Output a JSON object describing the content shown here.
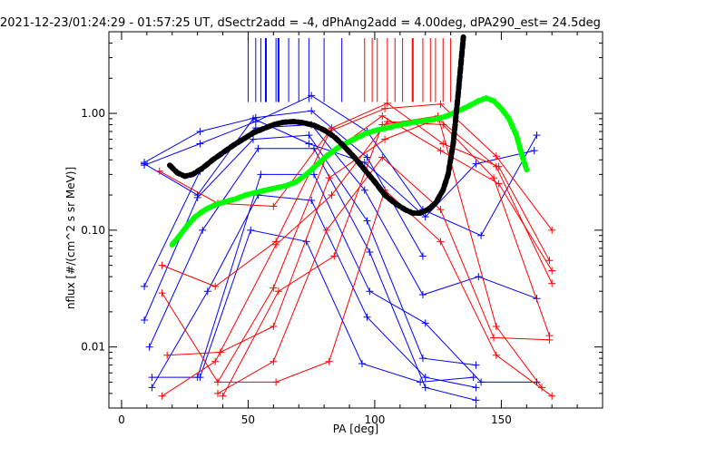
{
  "chart_data": {
    "type": "line",
    "title": "2021-12-23/01:24:29 - 01:57:25 UT, dSectr2add = -4, dPhAng2add = 4.00deg, dPA290_est= 24.5deg",
    "xlabel": "PA [deg]",
    "ylabel": "nflux [#/(cm^2 s sr MeV)]",
    "xlim": [
      -5,
      190
    ],
    "ylim": [
      0.003,
      5.0
    ],
    "yscale": "log",
    "x_ticks": [
      0,
      50,
      100,
      150
    ],
    "x_tick_labels": [
      "0",
      "50",
      "100",
      "150"
    ],
    "y_ticks": [
      0.01,
      0.1,
      1.0
    ],
    "y_tick_labels": [
      "0.01",
      "0.10",
      "1.00"
    ],
    "grid": false,
    "colors": {
      "blue": "#0000ff",
      "red": "#ff0000",
      "black": "#000000",
      "green": "#00ff00"
    },
    "blue_vlines": [
      50,
      53,
      55,
      57,
      61,
      62,
      66,
      70,
      74,
      80,
      87
    ],
    "red_vlines": [
      96,
      99,
      101,
      105,
      108,
      111,
      115,
      119,
      122,
      124,
      127,
      130
    ],
    "series": [
      {
        "color": "blue",
        "points": [
          [
            9,
            0.36
          ],
          [
            31,
            0.55
          ],
          [
            53,
            0.85
          ],
          [
            75,
            1.42
          ],
          [
            97,
            0.7
          ],
          [
            119,
            0.15
          ],
          [
            142,
            0.09
          ],
          [
            164,
            0.65
          ]
        ]
      },
      {
        "color": "blue",
        "points": [
          [
            9,
            0.38
          ],
          [
            31,
            0.7
          ],
          [
            53,
            0.92
          ],
          [
            75,
            1.05
          ],
          [
            97,
            0.42
          ],
          [
            119,
            0.06
          ]
        ]
      },
      {
        "color": "blue",
        "points": [
          [
            9,
            0.37
          ],
          [
            30,
            0.2
          ],
          [
            52,
            0.9
          ],
          [
            74,
            0.55
          ],
          [
            96,
            0.38
          ],
          [
            120,
            0.13
          ],
          [
            140,
            0.37
          ],
          [
            163,
            0.48
          ]
        ]
      },
      {
        "color": "blue",
        "points": [
          [
            9,
            0.033
          ],
          [
            31,
            0.32
          ],
          [
            53,
            0.75
          ],
          [
            75,
            0.8
          ],
          [
            96,
            0.22
          ],
          [
            119,
            0.028
          ],
          [
            141,
            0.04
          ],
          [
            164,
            0.026
          ]
        ]
      },
      {
        "color": "blue",
        "points": [
          [
            9,
            0.017
          ],
          [
            30,
            0.19
          ],
          [
            52,
            0.6
          ],
          [
            74,
            0.65
          ],
          [
            97,
            0.12
          ],
          [
            119,
            0.008
          ],
          [
            140,
            0.007
          ]
        ]
      },
      {
        "color": "blue",
        "points": [
          [
            11,
            0.01
          ],
          [
            32,
            0.1
          ],
          [
            54,
            0.5
          ],
          [
            76,
            0.5
          ],
          [
            98,
            0.065
          ],
          [
            120,
            0.0045
          ],
          [
            140,
            0.0035
          ]
        ]
      },
      {
        "color": "blue",
        "points": [
          [
            12,
            0.0055
          ],
          [
            30,
            0.0055
          ],
          [
            55,
            0.3
          ],
          [
            76,
            0.3
          ],
          [
            98,
            0.03
          ],
          [
            120,
            0.016
          ],
          [
            142,
            0.005
          ],
          [
            164,
            0.005
          ]
        ]
      },
      {
        "color": "blue",
        "points": [
          [
            12,
            0.0045
          ],
          [
            34,
            0.03
          ],
          [
            54,
            0.2
          ],
          [
            75,
            0.18
          ],
          [
            97,
            0.018
          ],
          [
            120,
            0.0055
          ],
          [
            140,
            0.0045
          ]
        ]
      },
      {
        "color": "blue",
        "points": [
          [
            31,
            0.0055
          ],
          [
            51,
            0.1
          ],
          [
            73,
            0.08
          ],
          [
            95,
            0.0072
          ],
          [
            118,
            0.005
          ],
          [
            139,
            0.0055
          ]
        ]
      },
      {
        "color": "red",
        "points": [
          [
            15,
            0.32
          ],
          [
            38,
            0.17
          ],
          [
            60,
            0.16
          ],
          [
            82,
            0.7
          ],
          [
            104,
            1.1
          ],
          [
            126,
            1.2
          ],
          [
            148,
            0.43
          ],
          [
            170,
            0.1
          ]
        ]
      },
      {
        "color": "red",
        "points": [
          [
            16,
            0.05
          ],
          [
            37,
            0.033
          ],
          [
            61,
            0.08
          ],
          [
            83,
            0.75
          ],
          [
            105,
            1.22
          ],
          [
            127,
            0.55
          ],
          [
            149,
            0.35
          ],
          [
            169,
            0.055
          ]
        ]
      },
      {
        "color": "red",
        "points": [
          [
            16,
            0.029
          ],
          [
            38,
            0.005
          ],
          [
            60,
            0.032
          ],
          [
            81,
            0.43
          ],
          [
            103,
            0.95
          ],
          [
            126,
            0.48
          ],
          [
            149,
            0.25
          ],
          [
            170,
            0.045
          ]
        ]
      },
      {
        "color": "red",
        "points": [
          [
            18,
            0.0085
          ],
          [
            39,
            0.009
          ],
          [
            60,
            0.015
          ],
          [
            82,
            0.28
          ],
          [
            104,
            0.6
          ],
          [
            125,
            0.9
          ],
          [
            148,
            0.35
          ],
          [
            170,
            0.035
          ]
        ]
      },
      {
        "color": "red",
        "points": [
          [
            16,
            0.0038
          ],
          [
            37,
            0.0075
          ],
          [
            61,
            0.075
          ],
          [
            83,
            0.2
          ],
          [
            105,
            0.85
          ],
          [
            127,
            0.8
          ],
          [
            147,
            0.28
          ],
          [
            169,
            0.0125
          ]
        ]
      },
      {
        "color": "red",
        "points": [
          [
            38,
            0.004
          ],
          [
            60,
            0.0075
          ],
          [
            81,
            0.1
          ],
          [
            103,
            0.42
          ],
          [
            126,
            0.15
          ],
          [
            147,
            0.012
          ],
          [
            169,
            0.0115
          ]
        ]
      },
      {
        "color": "red",
        "points": [
          [
            38,
            0.005
          ],
          [
            61,
            0.005
          ],
          [
            82,
            0.0075
          ],
          [
            104,
            0.22
          ],
          [
            126,
            0.08
          ],
          [
            148,
            0.0085
          ],
          [
            170,
            0.0038
          ]
        ]
      },
      {
        "color": "red",
        "points": [
          [
            40,
            0.0038
          ],
          [
            62,
            0.03
          ],
          [
            84,
            0.06
          ],
          [
            103,
            0.8
          ],
          [
            125,
            0.95
          ],
          [
            148,
            0.015
          ],
          [
            166,
            0.0045
          ]
        ]
      }
    ],
    "black_curve": [
      [
        19,
        0.36
      ],
      [
        22,
        0.31
      ],
      [
        25,
        0.29
      ],
      [
        28,
        0.3
      ],
      [
        32,
        0.34
      ],
      [
        36,
        0.4
      ],
      [
        40,
        0.46
      ],
      [
        44,
        0.53
      ],
      [
        48,
        0.6
      ],
      [
        52,
        0.68
      ],
      [
        56,
        0.74
      ],
      [
        60,
        0.8
      ],
      [
        64,
        0.84
      ],
      [
        68,
        0.85
      ],
      [
        72,
        0.83
      ],
      [
        76,
        0.79
      ],
      [
        80,
        0.72
      ],
      [
        84,
        0.63
      ],
      [
        88,
        0.52
      ],
      [
        92,
        0.42
      ],
      [
        96,
        0.33
      ],
      [
        100,
        0.26
      ],
      [
        104,
        0.2
      ],
      [
        108,
        0.17
      ],
      [
        112,
        0.15
      ],
      [
        115,
        0.14
      ],
      [
        118,
        0.14
      ],
      [
        121,
        0.15
      ],
      [
        124,
        0.17
      ],
      [
        127,
        0.22
      ],
      [
        129,
        0.3
      ],
      [
        131,
        0.55
      ],
      [
        132,
        0.9
      ],
      [
        133,
        1.5
      ],
      [
        134,
        2.6
      ],
      [
        135,
        4.5
      ]
    ],
    "green_curve": [
      [
        20,
        0.075
      ],
      [
        23,
        0.09
      ],
      [
        26,
        0.11
      ],
      [
        29,
        0.13
      ],
      [
        33,
        0.15
      ],
      [
        37,
        0.165
      ],
      [
        41,
        0.175
      ],
      [
        45,
        0.185
      ],
      [
        49,
        0.2
      ],
      [
        53,
        0.21
      ],
      [
        57,
        0.22
      ],
      [
        61,
        0.23
      ],
      [
        65,
        0.24
      ],
      [
        69,
        0.26
      ],
      [
        73,
        0.3
      ],
      [
        77,
        0.36
      ],
      [
        81,
        0.43
      ],
      [
        85,
        0.5
      ],
      [
        89,
        0.56
      ],
      [
        93,
        0.62
      ],
      [
        97,
        0.68
      ],
      [
        101,
        0.72
      ],
      [
        105,
        0.75
      ],
      [
        109,
        0.79
      ],
      [
        113,
        0.82
      ],
      [
        117,
        0.85
      ],
      [
        121,
        0.87
      ],
      [
        125,
        0.9
      ],
      [
        129,
        0.96
      ],
      [
        133,
        1.05
      ],
      [
        137,
        1.15
      ],
      [
        141,
        1.28
      ],
      [
        144,
        1.35
      ],
      [
        147,
        1.28
      ],
      [
        150,
        1.1
      ],
      [
        153,
        0.9
      ],
      [
        156,
        0.65
      ],
      [
        158,
        0.45
      ],
      [
        160,
        0.33
      ]
    ]
  }
}
